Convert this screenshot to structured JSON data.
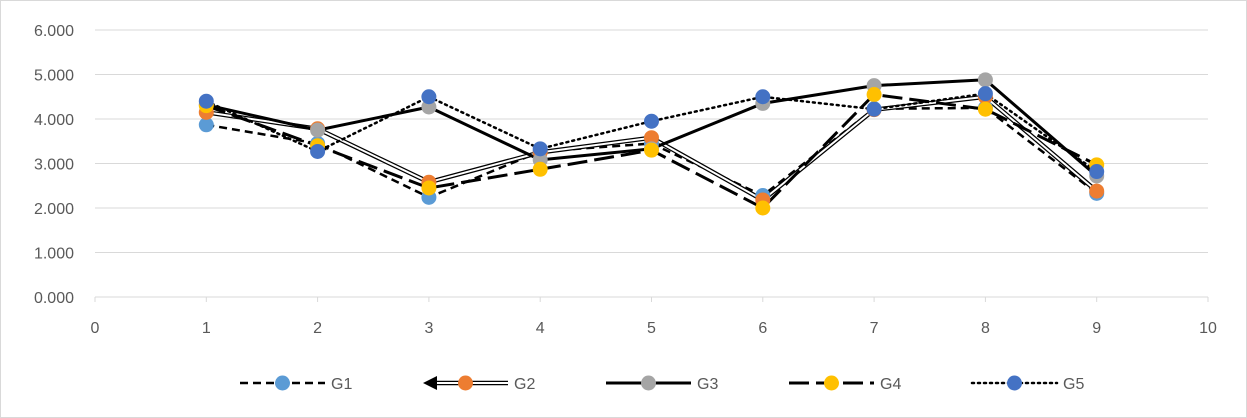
{
  "chart_data": {
    "type": "line",
    "title": "",
    "xlabel": "",
    "ylabel": "",
    "xlim": [
      0,
      10
    ],
    "ylim": [
      0,
      6
    ],
    "x_ticks": [
      0,
      1,
      2,
      3,
      4,
      5,
      6,
      7,
      8,
      9,
      10
    ],
    "y_ticks": [
      0,
      1,
      2,
      3,
      4,
      5,
      6
    ],
    "x_tick_labels": [
      "0",
      "1",
      "2",
      "3",
      "4",
      "5",
      "6",
      "7",
      "8",
      "9",
      "10"
    ],
    "y_tick_labels": [
      "0.000",
      "1.000",
      "2.000",
      "3.000",
      "4.000",
      "5.000",
      "6.000"
    ],
    "grid": "horizontal",
    "legend_position": "bottom",
    "x": [
      1,
      2,
      3,
      4,
      5,
      6,
      7,
      8,
      9
    ],
    "series": [
      {
        "name": "G1",
        "values": [
          3.87,
          3.45,
          2.24,
          3.27,
          3.45,
          2.28,
          4.23,
          4.25,
          2.33
        ],
        "line_style": "short-dash",
        "marker_color": "#5b9bd5"
      },
      {
        "name": "G2",
        "values": [
          4.15,
          3.78,
          2.58,
          3.25,
          3.58,
          2.18,
          4.21,
          4.5,
          2.38
        ],
        "line_style": "double-arrow",
        "marker_color": "#ed7d31"
      },
      {
        "name": "G3",
        "values": [
          4.32,
          3.75,
          4.27,
          3.08,
          3.33,
          4.35,
          4.75,
          4.88,
          2.72
        ],
        "line_style": "solid",
        "marker_color": "#a5a5a5"
      },
      {
        "name": "G4",
        "values": [
          4.3,
          3.4,
          2.45,
          2.87,
          3.3,
          2.0,
          4.55,
          4.22,
          2.97
        ],
        "line_style": "long-dash",
        "marker_color": "#ffc000"
      },
      {
        "name": "G5",
        "values": [
          4.4,
          3.27,
          4.5,
          3.33,
          3.95,
          4.5,
          4.22,
          4.57,
          2.82
        ],
        "line_style": "dotted",
        "marker_color": "#4472c4"
      }
    ]
  }
}
